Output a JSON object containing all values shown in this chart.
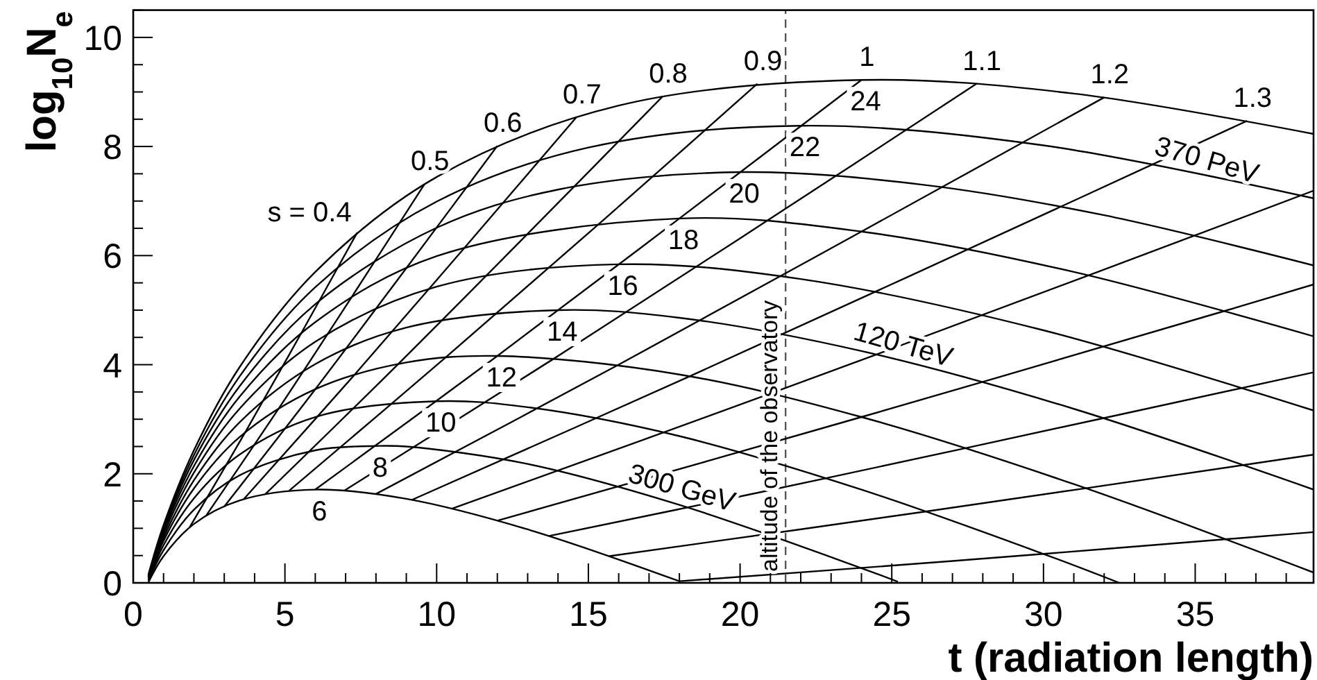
{
  "chart_data": {
    "type": "line",
    "xlabel": "t (radiation length)",
    "ylabel": "log$_{10}$N$_{e}$",
    "xlim": [
      0,
      38.9
    ],
    "ylim": [
      0,
      10.5
    ],
    "xticks": [
      0,
      {
        "value": 1,
        "label": null
      },
      {
        "value": 2,
        "label": null
      },
      {
        "value": 3,
        "label": null
      },
      {
        "value": 4,
        "label": null
      },
      5,
      {
        "value": 6,
        "label": null
      },
      {
        "value": 7,
        "label": null
      },
      {
        "value": 8,
        "label": null
      },
      {
        "value": 9,
        "label": null
      },
      10,
      {
        "value": 11,
        "label": null
      },
      {
        "value": 12,
        "label": null
      },
      {
        "value": 13,
        "label": null
      },
      {
        "value": 14,
        "label": null
      },
      15,
      {
        "value": 16,
        "label": null
      },
      {
        "value": 17,
        "label": null
      },
      {
        "value": 18,
        "label": null
      },
      {
        "value": 19,
        "label": null
      },
      20,
      {
        "value": 21,
        "label": null
      },
      {
        "value": 22,
        "label": null
      },
      {
        "value": 23,
        "label": null
      },
      {
        "value": 24,
        "label": null
      },
      25,
      {
        "value": 26,
        "label": null
      },
      {
        "value": 27,
        "label": null
      },
      {
        "value": 28,
        "label": null
      },
      {
        "value": 29,
        "label": null
      },
      30,
      {
        "value": 31,
        "label": null
      },
      {
        "value": 32,
        "label": null
      },
      {
        "value": 33,
        "label": null
      },
      {
        "value": 34,
        "label": null
      },
      35,
      {
        "value": 36,
        "label": null
      },
      {
        "value": 37,
        "label": null
      },
      {
        "value": 38,
        "label": null
      }
    ],
    "yticks": [
      0,
      {
        "value": 0.5,
        "label": null
      },
      {
        "value": 1,
        "label": null
      },
      {
        "value": 1.5,
        "label": null
      },
      2,
      {
        "value": 2.5,
        "label": null
      },
      {
        "value": 3,
        "label": null
      },
      {
        "value": 3.5,
        "label": null
      },
      4,
      {
        "value": 4.5,
        "label": null
      },
      {
        "value": 5,
        "label": null
      },
      {
        "value": 5.5,
        "label": null
      },
      6,
      {
        "value": 6.5,
        "label": null
      },
      {
        "value": 7,
        "label": null
      },
      {
        "value": 7.5,
        "label": null
      },
      8,
      {
        "value": 8.5,
        "label": null
      },
      {
        "value": 9,
        "label": null
      },
      {
        "value": 9.5,
        "label": null
      },
      10,
      {
        "value": 10.5,
        "label": null
      }
    ],
    "marker": "none",
    "series": [
      {
        "name": "6",
        "color": "#000000",
        "x": [
          0.5,
          1,
          2,
          3.5,
          6,
          9,
          13,
          18
        ],
        "values": [
          0.01,
          0.49,
          1.08,
          1.51,
          1.71,
          1.54,
          0.98,
          0.03
        ]
      },
      {
        "name": "8",
        "color": "#000000",
        "x": [
          0.5,
          1,
          2,
          3.5,
          6,
          8,
          9,
          13,
          18,
          24,
          25.2
        ],
        "values": [
          0.04,
          0.6,
          1.34,
          1.97,
          2.43,
          2.51,
          2.5,
          2.18,
          1.43,
          0.27,
          0.02
        ]
      },
      {
        "name": "10",
        "color": "#000000",
        "x": [
          0.5,
          1,
          2,
          3.5,
          6,
          10,
          13,
          18,
          24,
          30,
          32.5
        ],
        "values": [
          0.06,
          0.69,
          1.55,
          2.35,
          3.04,
          3.33,
          3.22,
          2.69,
          1.71,
          0.53,
          0
        ]
      },
      {
        "name": "12",
        "color": "#000000",
        "x": [
          0.5,
          1,
          2,
          3.5,
          6,
          9,
          12,
          18,
          24,
          31,
          38.9
        ],
        "values": [
          0.08,
          0.77,
          1.73,
          2.67,
          3.55,
          4.04,
          4.16,
          3.82,
          3.04,
          1.81,
          0.19
        ]
      },
      {
        "name": "14",
        "color": "#000000",
        "x": [
          0.5,
          1,
          2,
          3.5,
          6,
          9,
          14,
          18,
          24,
          31,
          38.9
        ],
        "values": [
          0.1,
          0.83,
          1.88,
          2.94,
          4.01,
          4.68,
          5,
          4.86,
          4.25,
          3.19,
          1.71
        ]
      },
      {
        "name": "16",
        "color": "#000000",
        "x": [
          0.5,
          1,
          2,
          3.5,
          6,
          10,
          16,
          22,
          30,
          38.9
        ],
        "values": [
          0.11,
          0.89,
          2.02,
          3.19,
          4.42,
          5.43,
          5.84,
          5.57,
          4.63,
          3.16
        ]
      },
      {
        "name": "18",
        "color": "#000000",
        "x": [
          0.5,
          1,
          2,
          3.5,
          6,
          10,
          18,
          24,
          31,
          38.9
        ],
        "values": [
          0.12,
          0.94,
          2.14,
          3.41,
          4.78,
          5.99,
          6.68,
          6.44,
          5.7,
          4.52
        ]
      },
      {
        "name": "20",
        "color": "#000000",
        "x": [
          0.5,
          1,
          2,
          3.5,
          6,
          10,
          14,
          20,
          26,
          32,
          38.9
        ],
        "values": [
          0.13,
          0.98,
          2.25,
          3.6,
          5.11,
          6.51,
          7.21,
          7.53,
          7.3,
          6.74,
          5.82
        ]
      },
      {
        "name": "22",
        "color": "#000000",
        "x": [
          0.5,
          1,
          2,
          3.5,
          6,
          10,
          15,
          22,
          30,
          38.9
        ],
        "values": [
          0.14,
          1.02,
          2.34,
          3.78,
          5.42,
          6.99,
          7.98,
          8.38,
          8.02,
          7.05
        ]
      },
      {
        "name": "24",
        "color": "#000000",
        "x": [
          0.5,
          1,
          2,
          3.5,
          6,
          10,
          16,
          24,
          31,
          38.9
        ],
        "values": [
          0.15,
          1.06,
          2.43,
          3.95,
          5.7,
          7.44,
          8.75,
          9.22,
          8.97,
          8.23
        ]
      },
      {
        "name": "s = 0.4",
        "color": "#000000",
        "x": [
          1.85,
          3.69,
          5.54,
          7.38
        ],
        "values": [
          1.01,
          2.76,
          4.58,
          6.42
        ]
      },
      {
        "name": "0.5",
        "color": "#000000",
        "x": [
          2.4,
          4.8,
          7.2,
          9.6
        ],
        "values": [
          1.23,
          3.2,
          5.24,
          7.31
        ]
      },
      {
        "name": "0.6",
        "color": "#000000",
        "x": [
          3,
          6,
          9,
          12
        ],
        "values": [
          1.4,
          3.55,
          5.77,
          8.01
        ]
      },
      {
        "name": "0.7",
        "color": "#000000",
        "x": [
          3.65,
          7.3,
          10.96,
          14.61
        ],
        "values": [
          1.54,
          3.82,
          6.17,
          8.54
        ]
      },
      {
        "name": "0.8",
        "color": "#000000",
        "x": [
          4.36,
          8.73,
          13.09,
          17.45
        ],
        "values": [
          1.63,
          4.01,
          6.45,
          8.92
        ]
      },
      {
        "name": "0.9",
        "color": "#000000",
        "x": [
          5.14,
          10.29,
          15.43,
          20.57
        ],
        "values": [
          1.69,
          4.13,
          6.62,
          9.15
        ]
      },
      {
        "name": "1",
        "color": "#000000",
        "x": [
          6,
          12,
          18,
          24
        ],
        "values": [
          1.71,
          4.16,
          6.68,
          9.22
        ]
      },
      {
        "name": "1.1",
        "color": "#000000",
        "x": [
          6.95,
          13.89,
          20.84,
          27.79
        ],
        "values": [
          1.69,
          4.12,
          6.62,
          9.15
        ]
      },
      {
        "name": "1.2",
        "color": "#000000",
        "x": [
          8,
          16,
          24,
          32
        ],
        "values": [
          1.63,
          4,
          6.44,
          8.9
        ]
      },
      {
        "name": "1.3",
        "color": "#000000",
        "x": [
          9.18,
          18.35,
          27.53,
          36.71
        ],
        "values": [
          1.52,
          3.79,
          6.12,
          8.47
        ]
      },
      {
        "color": "#000000",
        "x": [
          10.5,
          21,
          31.5,
          38.9
        ],
        "values": [
          1.36,
          3.47,
          5.64,
          7.19
        ]
      },
      {
        "color": "#000000",
        "x": [
          12,
          24,
          36,
          38.9
        ],
        "values": [
          1.14,
          3.04,
          4.99,
          5.47
        ]
      },
      {
        "color": "#000000",
        "x": [
          13.71,
          20.57,
          27.43,
          38.9
        ],
        "values": [
          0.86,
          1.65,
          2.47,
          3.86
        ]
      },
      {
        "color": "#000000",
        "x": [
          15.69,
          26.15,
          38.9
        ],
        "values": [
          0.49,
          1.31,
          2.35
        ]
      },
      {
        "color": "#000000",
        "x": [
          18,
          27,
          38.9
        ],
        "values": [
          0.03,
          0.4,
          0.93
        ]
      }
    ],
    "annotations": [
      {
        "text": "300 GeV",
        "x": 18,
        "y": 1.43
      },
      {
        "text": "120 TeV",
        "x": 25.3,
        "y": 4.06
      },
      {
        "text": "370 PeV",
        "x": 35.3,
        "y": 7.44
      }
    ],
    "ref_lines": [
      {
        "axis": "x",
        "value": 21.5,
        "label": "altitude of the observatory",
        "line_style": "dashed",
        "color": "#555555"
      }
    ]
  }
}
